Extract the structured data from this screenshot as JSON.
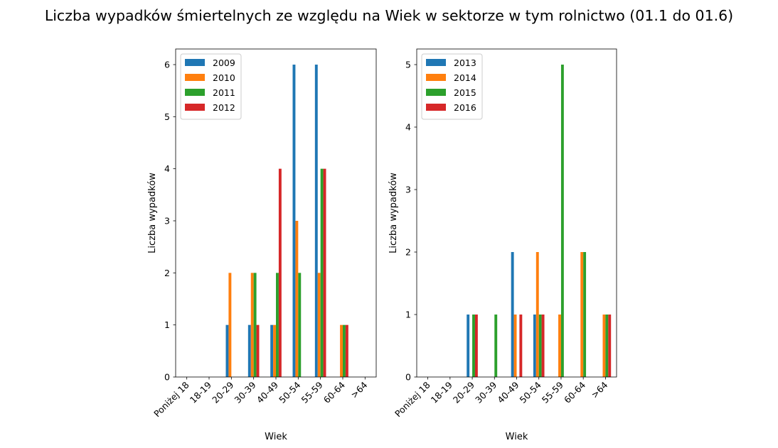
{
  "figure": {
    "suptitle": "Liczba wypadków śmiertelnych ze względu na Wiek w sektorze    w tym rolnictwo (01.1 do 01.6)"
  },
  "chart_data": [
    {
      "type": "bar",
      "xlabel": "Wiek",
      "ylabel": "Liczba wypadków",
      "ylim": [
        0,
        6.3
      ],
      "yticks": [
        "0",
        "1",
        "2",
        "3",
        "4",
        "5",
        "6"
      ],
      "categories": [
        "Poniżej 18",
        "18-19",
        "20-29",
        "30-39",
        "40-49",
        "50-54",
        "55-59",
        "60-64",
        ">64"
      ],
      "legend_position": "top-left",
      "series": [
        {
          "name": "2009",
          "color": "#1f77b4",
          "values": [
            0,
            0,
            1,
            1,
            1,
            6,
            6,
            0,
            0
          ]
        },
        {
          "name": "2010",
          "color": "#ff7f0e",
          "values": [
            0,
            0,
            2,
            2,
            1,
            3,
            2,
            1,
            0
          ]
        },
        {
          "name": "2011",
          "color": "#2ca02c",
          "values": [
            0,
            0,
            0,
            2,
            2,
            2,
            4,
            1,
            0
          ]
        },
        {
          "name": "2012",
          "color": "#d62728",
          "values": [
            0,
            0,
            0,
            1,
            4,
            0,
            4,
            1,
            0
          ]
        }
      ]
    },
    {
      "type": "bar",
      "xlabel": "Wiek",
      "ylabel": "Liczba wypadków",
      "ylim": [
        0,
        5.25
      ],
      "yticks": [
        "0",
        "1",
        "2",
        "3",
        "4",
        "5"
      ],
      "categories": [
        "Poniżej 18",
        "18-19",
        "20-29",
        "30-39",
        "40-49",
        "50-54",
        "55-59",
        "60-64",
        ">64"
      ],
      "legend_position": "top-left",
      "series": [
        {
          "name": "2013",
          "color": "#1f77b4",
          "values": [
            0,
            0,
            1,
            0,
            2,
            1,
            0,
            0,
            0
          ]
        },
        {
          "name": "2014",
          "color": "#ff7f0e",
          "values": [
            0,
            0,
            0,
            0,
            1,
            2,
            1,
            2,
            1
          ]
        },
        {
          "name": "2015",
          "color": "#2ca02c",
          "values": [
            0,
            0,
            1,
            1,
            0,
            1,
            5,
            2,
            1
          ]
        },
        {
          "name": "2016",
          "color": "#d62728",
          "values": [
            0,
            0,
            1,
            0,
            1,
            1,
            0,
            0,
            1
          ]
        }
      ]
    }
  ]
}
